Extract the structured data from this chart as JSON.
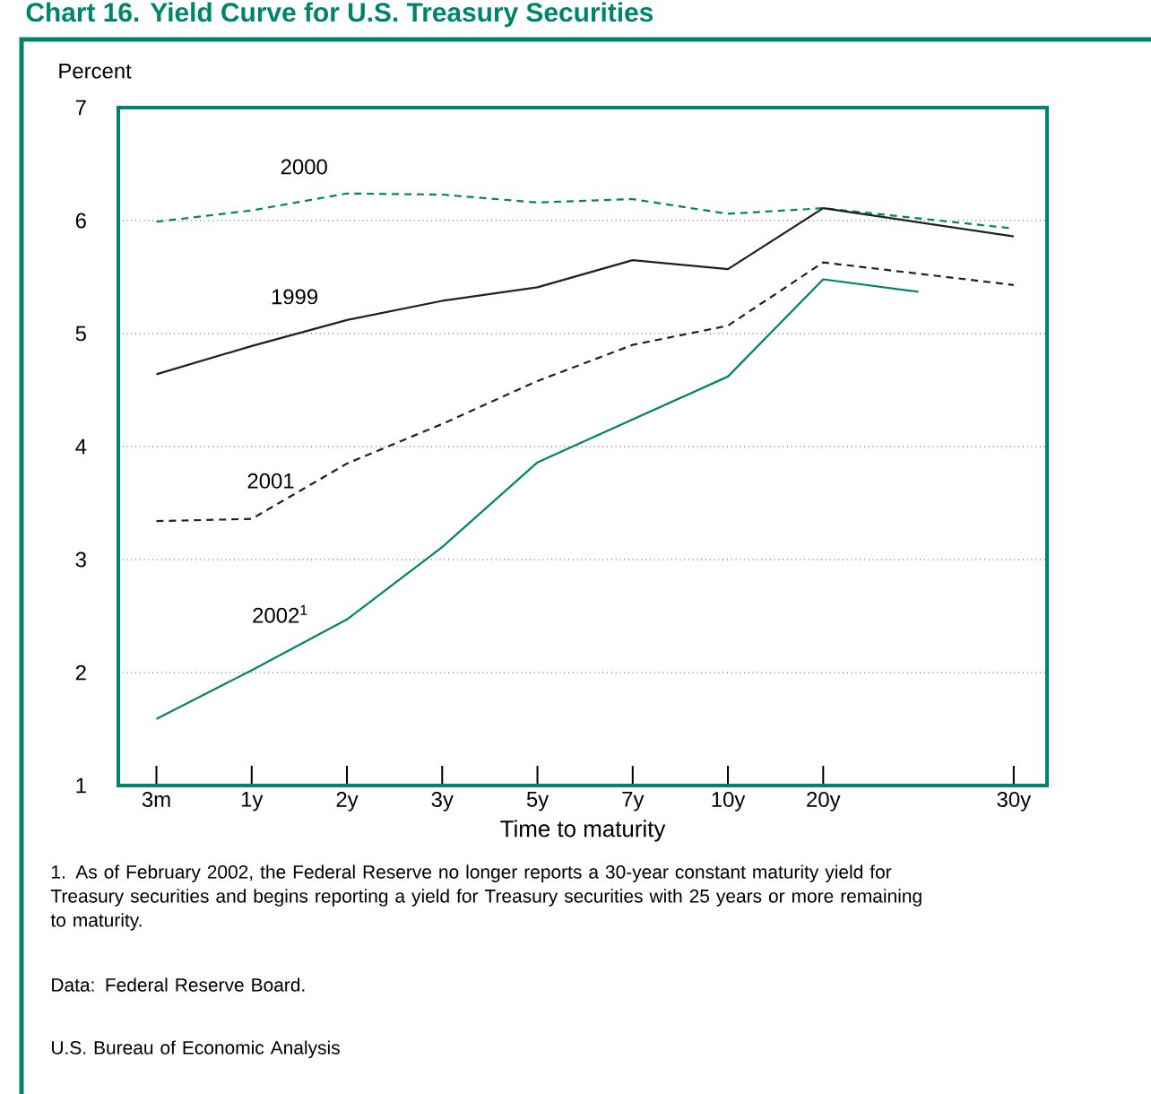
{
  "chart_data": {
    "type": "line",
    "title": "Chart 16. Yield Curve for U.S. Treasury Securities",
    "ylabel": "Percent",
    "xlabel": "Time to maturity",
    "categories": [
      "3m",
      "1y",
      "2y",
      "3y",
      "5y",
      "7y",
      "10y",
      "20y",
      null,
      "30y"
    ],
    "ylim": [
      1,
      7
    ],
    "yticks": [
      1,
      2,
      3,
      4,
      5,
      6,
      7
    ],
    "grid": "y",
    "marker": "none",
    "series": [
      {
        "name": "2000",
        "color": "#00836b",
        "line_style": "dashed",
        "values": [
          5.99,
          6.09,
          6.24,
          6.23,
          6.16,
          6.19,
          6.06,
          6.11,
          null,
          5.93
        ]
      },
      {
        "name": "1999",
        "color": "#231f20",
        "line_style": "solid",
        "values": [
          4.64,
          4.89,
          5.12,
          5.29,
          5.41,
          5.65,
          5.57,
          6.11,
          null,
          5.86
        ]
      },
      {
        "name": "2001",
        "color": "#231f20",
        "line_style": "dashed",
        "values": [
          3.34,
          3.36,
          3.85,
          4.2,
          4.58,
          4.9,
          5.07,
          5.63,
          null,
          5.43
        ]
      },
      {
        "name": "2002$^{1}$",
        "color": "#00836b",
        "line_style": "solid",
        "values": [
          1.59,
          2.02,
          2.47,
          3.11,
          3.86,
          4.24,
          4.62,
          5.48,
          5.37,
          null
        ]
      }
    ],
    "annotations": [
      "1. As of February 2002, the Federal Reserve no longer reports a 30-year constant maturity yield for Treasury securities and begins reporting a yield for Treasury securities with 25 years or more remaining to maturity.",
      "Data: Federal Reserve  Board.",
      "U.S. Bureau of Economic Analysis"
    ]
  }
}
